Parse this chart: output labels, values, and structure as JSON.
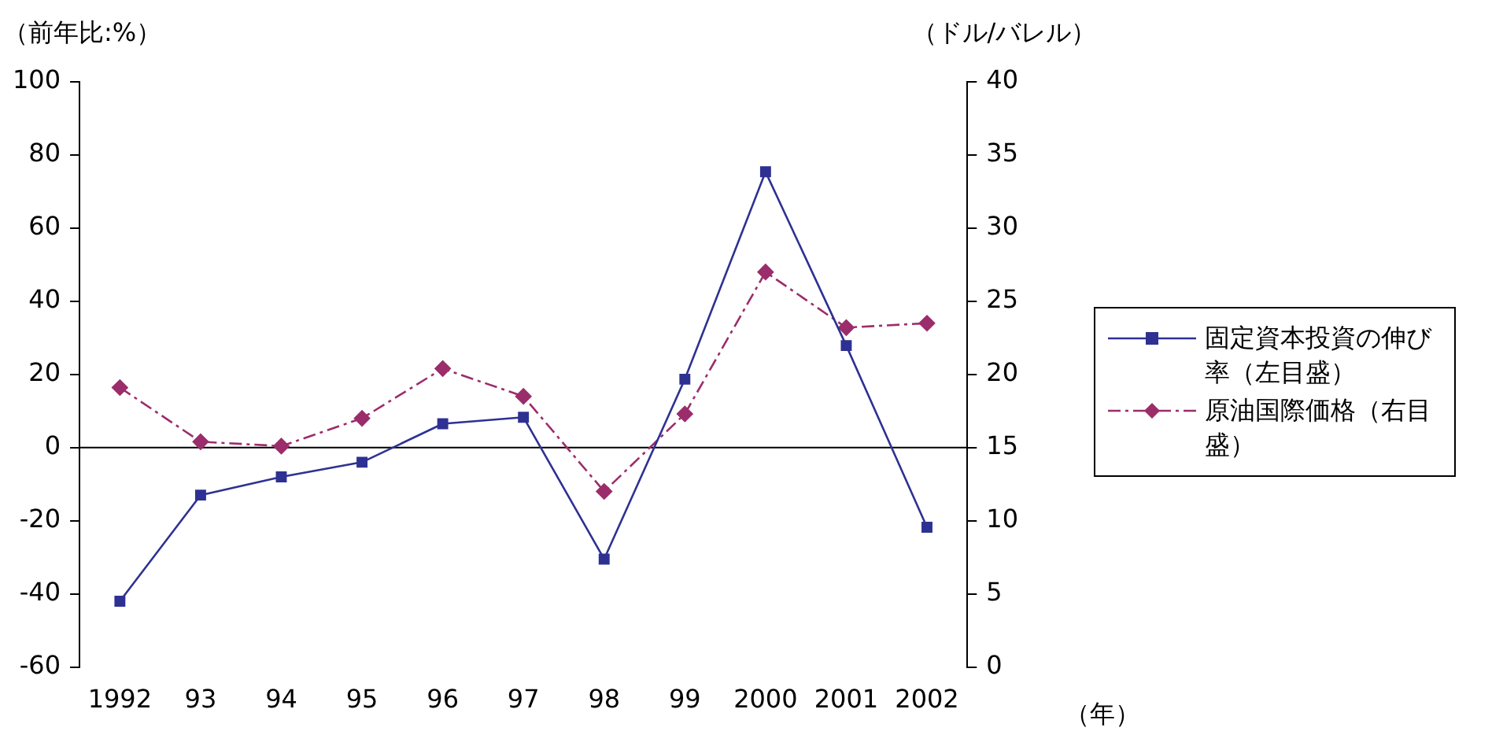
{
  "chart_data": {
    "type": "line",
    "ylabel": "（前年比:%）",
    "y2label": "（ドル/バレル）",
    "xlabel": "（年）",
    "categories": [
      "1992",
      "93",
      "94",
      "95",
      "96",
      "97",
      "98",
      "99",
      "2000",
      "2001",
      "2002"
    ],
    "series": [
      {
        "name": "固定資本投資の伸び率（左目盛）",
        "color": "#2e3192",
        "marker": "square",
        "line_style": "solid",
        "values": [
          -42,
          -13,
          -8,
          -4,
          6.5,
          8.3,
          -30.5,
          18.7,
          75.4,
          27.9,
          -21.8
        ]
      },
      {
        "name": "原油国際価格（右目盛）",
        "color": "#9b2d6b",
        "marker": "diamond",
        "line_style": "dashed",
        "axis": "y2",
        "values": [
          19.1,
          15.4,
          15.1,
          17.0,
          20.4,
          18.5,
          12.0,
          17.3,
          27.0,
          23.2,
          23.5
        ]
      }
    ],
    "ylim": [
      -60,
      100
    ],
    "yticks": [
      -60,
      -40,
      -20,
      0,
      20,
      40,
      60,
      80,
      100
    ],
    "y2lim": [
      0,
      40
    ],
    "y2ticks": [
      0,
      5,
      10,
      15,
      20,
      25,
      30,
      35,
      40
    ],
    "ref_lines": [
      {
        "axis": "y",
        "value": 0,
        "color": "#000000"
      }
    ],
    "grid": false,
    "legend": "right"
  }
}
